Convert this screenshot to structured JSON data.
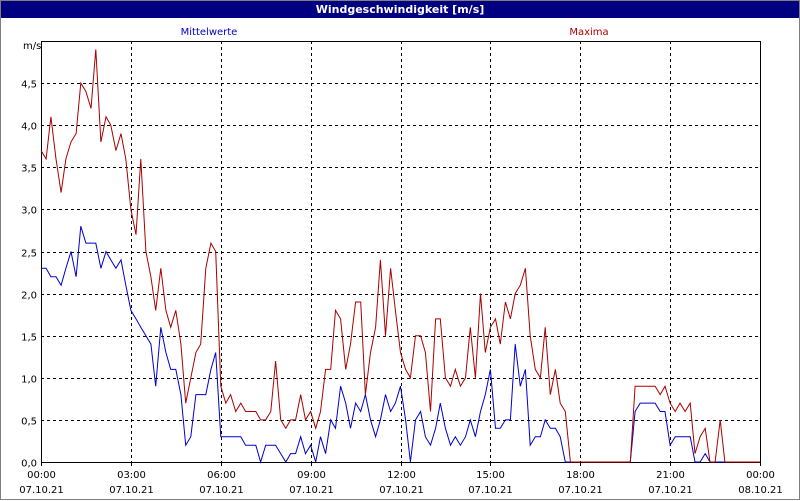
{
  "window": {
    "title": "Windgeschwindigkeit [m/s]"
  },
  "colors": {
    "title_bg": "#000080",
    "avg": "#0000cc",
    "max": "#aa0000",
    "grid": "#000000"
  },
  "chart_data": {
    "type": "line",
    "title": "Windgeschwindigkeit [m/s]",
    "ylabel": "m/s",
    "ylim": [
      0,
      5.0
    ],
    "yticks": [
      "0,0",
      "0,5",
      "1,0",
      "1,5",
      "2,0",
      "2,5",
      "3,0",
      "3,5",
      "4,0",
      "4,5"
    ],
    "ytick_values": [
      0,
      0.5,
      1.0,
      1.5,
      2.0,
      2.5,
      3.0,
      3.5,
      4.0,
      4.5
    ],
    "xticks": [
      {
        "time": "00:00",
        "date": "07.10.21"
      },
      {
        "time": "03:00",
        "date": "07.10.21"
      },
      {
        "time": "06:00",
        "date": "07.10.21"
      },
      {
        "time": "09:00",
        "date": "07.10.21"
      },
      {
        "time": "12:00",
        "date": "07.10.21"
      },
      {
        "time": "15:00",
        "date": "07.10.21"
      },
      {
        "time": "18:00",
        "date": "07.10.21"
      },
      {
        "time": "21:00",
        "date": "07.10.21"
      },
      {
        "time": "00:00",
        "date": "08.10.21"
      }
    ],
    "x_unit": "hours",
    "xlim": [
      0,
      24
    ],
    "grid": true,
    "series": [
      {
        "name": "Mittelwerte",
        "color": "#0000cc",
        "legend_position": "top-left",
        "points": [
          [
            0.0,
            2.3
          ],
          [
            0.17,
            2.3
          ],
          [
            0.33,
            2.2
          ],
          [
            0.5,
            2.2
          ],
          [
            0.67,
            2.1
          ],
          [
            0.83,
            2.3
          ],
          [
            1.0,
            2.5
          ],
          [
            1.17,
            2.2
          ],
          [
            1.33,
            2.8
          ],
          [
            1.5,
            2.6
          ],
          [
            1.67,
            2.6
          ],
          [
            1.83,
            2.6
          ],
          [
            2.0,
            2.3
          ],
          [
            2.17,
            2.5
          ],
          [
            2.33,
            2.4
          ],
          [
            2.5,
            2.3
          ],
          [
            2.67,
            2.4
          ],
          [
            2.83,
            2.1
          ],
          [
            3.0,
            1.8
          ],
          [
            3.17,
            1.7
          ],
          [
            3.33,
            1.6
          ],
          [
            3.5,
            1.5
          ],
          [
            3.67,
            1.4
          ],
          [
            3.83,
            0.9
          ],
          [
            4.0,
            1.6
          ],
          [
            4.17,
            1.3
          ],
          [
            4.33,
            1.1
          ],
          [
            4.5,
            1.1
          ],
          [
            4.67,
            0.8
          ],
          [
            4.83,
            0.2
          ],
          [
            5.0,
            0.3
          ],
          [
            5.17,
            0.8
          ],
          [
            5.33,
            0.8
          ],
          [
            5.5,
            0.8
          ],
          [
            5.67,
            1.1
          ],
          [
            5.83,
            1.3
          ],
          [
            6.0,
            0.3
          ],
          [
            6.17,
            0.3
          ],
          [
            6.33,
            0.3
          ],
          [
            6.5,
            0.3
          ],
          [
            6.67,
            0.3
          ],
          [
            6.83,
            0.2
          ],
          [
            7.0,
            0.2
          ],
          [
            7.17,
            0.2
          ],
          [
            7.33,
            0.0
          ],
          [
            7.5,
            0.2
          ],
          [
            7.67,
            0.2
          ],
          [
            7.83,
            0.2
          ],
          [
            8.0,
            0.1
          ],
          [
            8.17,
            0.0
          ],
          [
            8.33,
            0.1
          ],
          [
            8.5,
            0.1
          ],
          [
            8.67,
            0.3
          ],
          [
            8.83,
            0.1
          ],
          [
            9.0,
            0.2
          ],
          [
            9.17,
            0.0
          ],
          [
            9.33,
            0.3
          ],
          [
            9.5,
            0.1
          ],
          [
            9.67,
            0.5
          ],
          [
            9.83,
            0.4
          ],
          [
            10.0,
            0.9
          ],
          [
            10.17,
            0.7
          ],
          [
            10.33,
            0.4
          ],
          [
            10.5,
            0.7
          ],
          [
            10.67,
            0.6
          ],
          [
            10.83,
            0.8
          ],
          [
            11.0,
            0.5
          ],
          [
            11.17,
            0.3
          ],
          [
            11.33,
            0.5
          ],
          [
            11.5,
            0.8
          ],
          [
            11.67,
            0.6
          ],
          [
            11.83,
            0.7
          ],
          [
            12.0,
            0.9
          ],
          [
            12.17,
            0.5
          ],
          [
            12.33,
            0.0
          ],
          [
            12.5,
            0.5
          ],
          [
            12.67,
            0.6
          ],
          [
            12.83,
            0.3
          ],
          [
            13.0,
            0.2
          ],
          [
            13.17,
            0.4
          ],
          [
            13.33,
            0.7
          ],
          [
            13.5,
            0.4
          ],
          [
            13.67,
            0.2
          ],
          [
            13.83,
            0.3
          ],
          [
            14.0,
            0.2
          ],
          [
            14.17,
            0.3
          ],
          [
            14.33,
            0.5
          ],
          [
            14.5,
            0.3
          ],
          [
            14.67,
            0.6
          ],
          [
            14.83,
            0.8
          ],
          [
            15.0,
            1.1
          ],
          [
            15.17,
            0.4
          ],
          [
            15.33,
            0.4
          ],
          [
            15.5,
            0.5
          ],
          [
            15.67,
            0.5
          ],
          [
            15.83,
            1.4
          ],
          [
            16.0,
            0.9
          ],
          [
            16.17,
            1.1
          ],
          [
            16.33,
            0.2
          ],
          [
            16.5,
            0.3
          ],
          [
            16.67,
            0.3
          ],
          [
            16.83,
            0.5
          ],
          [
            17.0,
            0.4
          ],
          [
            17.17,
            0.4
          ],
          [
            17.33,
            0.3
          ],
          [
            17.5,
            0.0
          ],
          [
            17.67,
            0.0
          ],
          [
            18.0,
            0.0
          ],
          [
            18.5,
            0.0
          ],
          [
            19.0,
            0.0
          ],
          [
            19.5,
            0.0
          ],
          [
            19.67,
            0.0
          ],
          [
            19.83,
            0.6
          ],
          [
            20.0,
            0.7
          ],
          [
            20.33,
            0.7
          ],
          [
            20.5,
            0.7
          ],
          [
            20.67,
            0.6
          ],
          [
            20.83,
            0.6
          ],
          [
            21.0,
            0.2
          ],
          [
            21.17,
            0.3
          ],
          [
            21.5,
            0.3
          ],
          [
            21.67,
            0.3
          ],
          [
            21.83,
            0.0
          ],
          [
            22.0,
            0.0
          ],
          [
            22.17,
            0.1
          ],
          [
            22.33,
            0.0
          ],
          [
            22.5,
            0.0
          ],
          [
            23.0,
            0.0
          ],
          [
            24.0,
            0.0
          ]
        ]
      },
      {
        "name": "Maxima",
        "color": "#aa0000",
        "legend_position": "top-right",
        "points": [
          [
            0.0,
            3.7
          ],
          [
            0.17,
            3.6
          ],
          [
            0.33,
            4.1
          ],
          [
            0.5,
            3.6
          ],
          [
            0.67,
            3.2
          ],
          [
            0.83,
            3.6
          ],
          [
            1.0,
            3.8
          ],
          [
            1.17,
            3.9
          ],
          [
            1.33,
            4.5
          ],
          [
            1.5,
            4.4
          ],
          [
            1.67,
            4.2
          ],
          [
            1.83,
            4.9
          ],
          [
            2.0,
            3.8
          ],
          [
            2.17,
            4.1
          ],
          [
            2.33,
            4.0
          ],
          [
            2.5,
            3.7
          ],
          [
            2.67,
            3.9
          ],
          [
            2.83,
            3.6
          ],
          [
            3.0,
            3.0
          ],
          [
            3.17,
            2.7
          ],
          [
            3.33,
            3.6
          ],
          [
            3.5,
            2.5
          ],
          [
            3.67,
            2.2
          ],
          [
            3.83,
            1.8
          ],
          [
            4.0,
            2.3
          ],
          [
            4.17,
            1.8
          ],
          [
            4.33,
            1.6
          ],
          [
            4.5,
            1.8
          ],
          [
            4.67,
            1.4
          ],
          [
            4.83,
            0.7
          ],
          [
            5.0,
            1.0
          ],
          [
            5.17,
            1.3
          ],
          [
            5.33,
            1.4
          ],
          [
            5.5,
            2.3
          ],
          [
            5.67,
            2.6
          ],
          [
            5.83,
            2.5
          ],
          [
            6.0,
            0.9
          ],
          [
            6.17,
            0.7
          ],
          [
            6.33,
            0.8
          ],
          [
            6.5,
            0.6
          ],
          [
            6.67,
            0.7
          ],
          [
            6.83,
            0.6
          ],
          [
            7.0,
            0.6
          ],
          [
            7.17,
            0.6
          ],
          [
            7.33,
            0.5
          ],
          [
            7.5,
            0.5
          ],
          [
            7.67,
            0.6
          ],
          [
            7.83,
            1.2
          ],
          [
            8.0,
            0.5
          ],
          [
            8.17,
            0.4
          ],
          [
            8.33,
            0.5
          ],
          [
            8.5,
            0.5
          ],
          [
            8.67,
            0.8
          ],
          [
            8.83,
            0.5
          ],
          [
            9.0,
            0.6
          ],
          [
            9.17,
            0.4
          ],
          [
            9.33,
            0.6
          ],
          [
            9.5,
            1.1
          ],
          [
            9.67,
            1.1
          ],
          [
            9.83,
            1.8
          ],
          [
            10.0,
            1.7
          ],
          [
            10.17,
            1.1
          ],
          [
            10.33,
            1.4
          ],
          [
            10.5,
            1.9
          ],
          [
            10.67,
            1.9
          ],
          [
            10.83,
            0.8
          ],
          [
            11.0,
            1.3
          ],
          [
            11.17,
            1.6
          ],
          [
            11.33,
            2.4
          ],
          [
            11.5,
            1.5
          ],
          [
            11.67,
            2.3
          ],
          [
            11.83,
            1.8
          ],
          [
            12.0,
            1.3
          ],
          [
            12.17,
            1.1
          ],
          [
            12.33,
            1.0
          ],
          [
            12.5,
            1.5
          ],
          [
            12.67,
            1.5
          ],
          [
            12.83,
            1.3
          ],
          [
            13.0,
            0.6
          ],
          [
            13.17,
            1.7
          ],
          [
            13.33,
            1.7
          ],
          [
            13.5,
            1.0
          ],
          [
            13.67,
            0.9
          ],
          [
            13.83,
            1.1
          ],
          [
            14.0,
            0.9
          ],
          [
            14.17,
            1.0
          ],
          [
            14.33,
            1.6
          ],
          [
            14.5,
            1.0
          ],
          [
            14.67,
            2.0
          ],
          [
            14.83,
            1.3
          ],
          [
            15.0,
            1.6
          ],
          [
            15.17,
            1.7
          ],
          [
            15.33,
            1.4
          ],
          [
            15.5,
            1.9
          ],
          [
            15.67,
            1.7
          ],
          [
            15.83,
            2.0
          ],
          [
            16.0,
            2.1
          ],
          [
            16.17,
            2.3
          ],
          [
            16.33,
            1.5
          ],
          [
            16.5,
            1.1
          ],
          [
            16.67,
            1.0
          ],
          [
            16.83,
            1.6
          ],
          [
            17.0,
            0.8
          ],
          [
            17.17,
            1.1
          ],
          [
            17.33,
            0.7
          ],
          [
            17.5,
            0.6
          ],
          [
            17.67,
            0.0
          ],
          [
            18.0,
            0.0
          ],
          [
            18.5,
            0.0
          ],
          [
            19.0,
            0.0
          ],
          [
            19.5,
            0.0
          ],
          [
            19.67,
            0.0
          ],
          [
            19.83,
            0.9
          ],
          [
            20.0,
            0.9
          ],
          [
            20.33,
            0.9
          ],
          [
            20.5,
            0.9
          ],
          [
            20.67,
            0.8
          ],
          [
            20.83,
            0.9
          ],
          [
            21.0,
            0.7
          ],
          [
            21.17,
            0.6
          ],
          [
            21.33,
            0.7
          ],
          [
            21.5,
            0.6
          ],
          [
            21.67,
            0.7
          ],
          [
            21.83,
            0.1
          ],
          [
            22.0,
            0.3
          ],
          [
            22.17,
            0.4
          ],
          [
            22.33,
            0.0
          ],
          [
            22.5,
            0.0
          ],
          [
            22.67,
            0.5
          ],
          [
            22.83,
            0.0
          ],
          [
            23.0,
            0.0
          ],
          [
            24.0,
            0.0
          ]
        ]
      }
    ]
  }
}
